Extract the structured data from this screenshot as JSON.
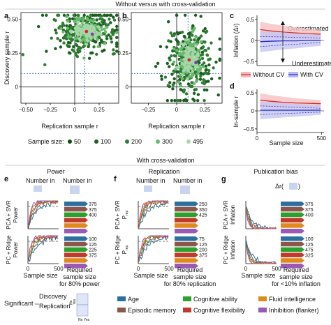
{
  "headers": {
    "top": "Without versus with cross-validation",
    "middle": "With cross-validation"
  },
  "panel_labels": [
    "a",
    "b",
    "c",
    "d",
    "e",
    "f",
    "g"
  ],
  "colors": {
    "green_dark": "#1b5e20",
    "green_mid": "#2e7d32",
    "green_light": "#66bb6a",
    "green_pale": "#a5d6a7",
    "red": "#d62728",
    "blue": "#2a2ad0",
    "dash_blue": "#3b6fb6"
  },
  "chart_data": [
    {
      "id": "a",
      "type": "scatter",
      "xlabel": "Replication sample r",
      "ylabel": "Discovery sample r",
      "xticks": [
        "−0.50",
        "−0.25",
        "0",
        "0.25"
      ],
      "yticks": [
        "0",
        "0.25",
        "0.50"
      ],
      "xlim": [
        -0.55,
        0.45
      ],
      "ylim": [
        -0.12,
        0.55
      ],
      "reference_dashed": {
        "x": 0.1,
        "y": 0.1
      },
      "center": {
        "x": 0.12,
        "y": 0.41
      },
      "spread": {
        "x": 0.22,
        "y": 0.06
      }
    },
    {
      "id": "b",
      "type": "scatter",
      "xlabel": "Replication sample r",
      "xticks": [
        "−0.25",
        "0",
        "0.25"
      ],
      "yticks": [
        "0",
        "0.25",
        "0.50"
      ],
      "xlim": [
        -0.4,
        0.4
      ],
      "ylim": [
        -0.12,
        0.55
      ],
      "reference_dashed": {
        "x": 0.1,
        "y": 0.1
      },
      "center": {
        "x": 0.11,
        "y": 0.2
      },
      "spread": {
        "x": 0.12,
        "y": 0.1
      }
    },
    {
      "id": "c",
      "type": "line",
      "ylabel": "Inflation (Δr)",
      "yticks": [
        "0.5",
        "0",
        "−0.5"
      ],
      "ylim": [
        -0.6,
        0.6
      ],
      "annotations": [
        "Overestimated",
        "Underestimated"
      ],
      "series": [
        {
          "name": "Without CV",
          "x": [
            25,
            100,
            200,
            300,
            400,
            495
          ],
          "y": [
            0.26,
            0.23,
            0.2,
            0.18,
            0.16,
            0.15
          ]
        },
        {
          "name": "With CV",
          "x": [
            25,
            100,
            200,
            300,
            400,
            495
          ],
          "y": [
            -0.03,
            -0.02,
            -0.01,
            -0.01,
            0.0,
            0.0
          ]
        }
      ]
    },
    {
      "id": "d",
      "type": "line",
      "xlabel": "Sample size",
      "ylabel": "In-sample r",
      "xticks": [
        "0",
        "500"
      ],
      "yticks": [
        "0.5",
        "0",
        "−0.5"
      ],
      "ylim": [
        -0.6,
        0.6
      ],
      "series": [
        {
          "name": "Without CV",
          "x": [
            25,
            100,
            200,
            300,
            400,
            495
          ],
          "y": [
            0.3,
            0.27,
            0.24,
            0.22,
            0.21,
            0.2
          ]
        },
        {
          "name": "With CV",
          "x": [
            25,
            100,
            200,
            300,
            400,
            495
          ],
          "y": [
            0.02,
            0.02,
            0.02,
            0.02,
            0.02,
            0.02
          ]
        }
      ]
    },
    {
      "id": "e",
      "title": "Power",
      "type": "line",
      "xlabel": "Sample size",
      "xticks": [
        "0",
        "500"
      ],
      "rows": [
        {
          "method": "PCA + SVR",
          "ylabel": "Power",
          "bar_values": [
            "375",
            "375",
            "400"
          ]
        },
        {
          "method": "PC + Ridge",
          "ylabel": "Power",
          "bar_values": [
            "100",
            "125",
            "225",
            "375"
          ]
        }
      ],
      "bar_caption": [
        "Required",
        "sample size",
        "for 80% power"
      ],
      "header_labels": [
        "Number in",
        "Number in"
      ]
    },
    {
      "id": "f",
      "title": "Replication",
      "type": "line",
      "xlabel": "Sample size",
      "xticks": [
        "0",
        "500"
      ],
      "rows": [
        {
          "method": "PCA + SVR",
          "ylabel": "P",
          "ysub": "rep",
          "bar_values": [
            "250",
            "350",
            "425"
          ]
        },
        {
          "method": "PC + Ridge",
          "ylabel": "P",
          "ysub": "rep",
          "bar_values": [
            "75",
            "125",
            "200",
            "375"
          ]
        }
      ],
      "bar_caption": [
        "Required",
        "sample size",
        "for 80% replication"
      ],
      "header_labels": [
        "Number in",
        "Number in"
      ]
    },
    {
      "id": "g",
      "title": "Publication bias",
      "type": "line",
      "xlabel": "Sample size",
      "xticks": [
        "0",
        "500"
      ],
      "rows": [
        {
          "method": "PCA + SVR",
          "ylabel": "Inflation",
          "bar_values": [
            "375",
            "375",
            "400"
          ]
        },
        {
          "method": "PC + Ridge",
          "ylabel": "Inflation",
          "bar_values": [
            "100",
            "125",
            "475",
            "325"
          ]
        }
      ],
      "bar_caption": [
        "Required",
        "sample size",
        "for <10% inflation"
      ],
      "header_labels": [
        "Δr("
      ]
    }
  ],
  "legends": {
    "cv": {
      "without": "Without CV",
      "with": "With CV"
    },
    "sample_size": {
      "title": "Sample size:",
      "entries": [
        "50",
        "100",
        "200",
        "300",
        "495"
      ]
    },
    "phenotypes": [
      {
        "name": "Age",
        "color": "#2b6f9e"
      },
      {
        "name": "Episodic memory",
        "color": "#8c564b"
      },
      {
        "name": "Cognitive ability",
        "color": "#2ca02c"
      },
      {
        "name": "Cognitive flexibility",
        "color": "#c0392b"
      },
      {
        "name": "Fluid intelligence",
        "color": "#e08a1e"
      },
      {
        "name": "Inhibition (flanker)",
        "color": "#9b59b6"
      }
    ],
    "significance": {
      "label": "Significant",
      "rows": [
        "Discovery",
        "Replication"
      ],
      "cols": [
        "No",
        "Yes"
      ]
    }
  }
}
